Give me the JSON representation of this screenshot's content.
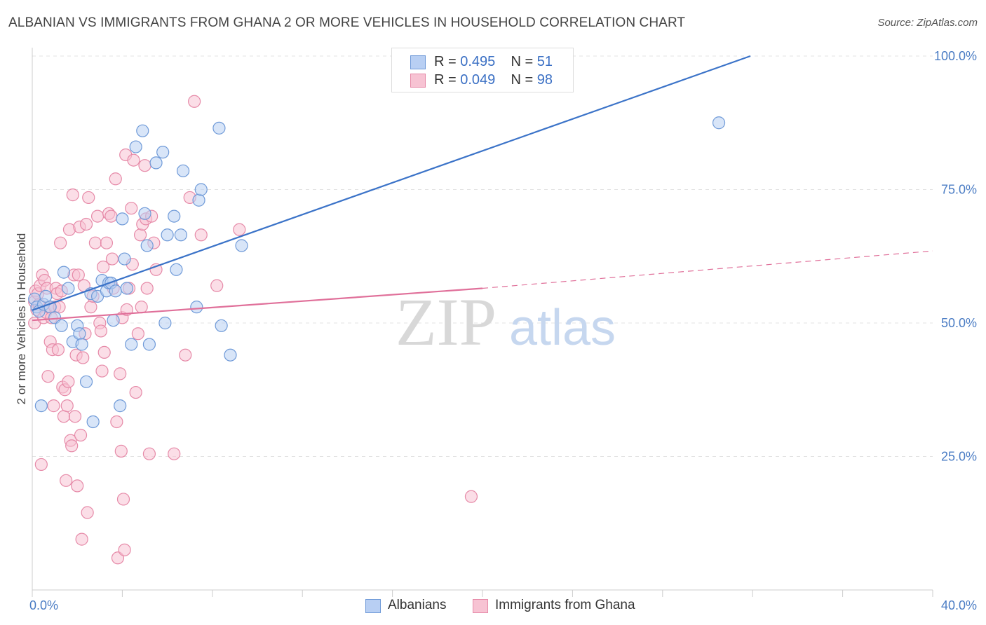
{
  "header": {
    "title": "ALBANIAN VS IMMIGRANTS FROM GHANA 2 OR MORE VEHICLES IN HOUSEHOLD CORRELATION CHART",
    "source": "Source: ZipAtlas.com"
  },
  "legend": {
    "rows": [
      {
        "r_label": "R =",
        "r_value": "0.495",
        "n_label": "N =",
        "n_value": "51"
      },
      {
        "r_label": "R =",
        "r_value": "0.049",
        "n_label": "N =",
        "n_value": "98"
      }
    ]
  },
  "watermark": {
    "zip": "ZIP",
    "atlas": "atlas"
  },
  "colors": {
    "albanian_fill": "#b8cff3",
    "albanian_stroke": "#6f9ad8",
    "albanian_line": "#3b73c8",
    "ghana_fill": "#f7c3d3",
    "ghana_stroke": "#e68aa8",
    "ghana_line": "#e0709a",
    "grid": "#e3e3e3",
    "axis_text": "#4a7cc4"
  },
  "chart_data": {
    "type": "scatter",
    "title": "ALBANIAN VS IMMIGRANTS FROM GHANA 2 OR MORE VEHICLES IN HOUSEHOLD CORRELATION CHART",
    "xlabel": "",
    "ylabel": "2 or more Vehicles in Household",
    "xlim": [
      0,
      40
    ],
    "ylim": [
      0,
      100
    ],
    "x_tick_labels": [
      "0.0%",
      "40.0%"
    ],
    "y_ticks": [
      25,
      50,
      75,
      100
    ],
    "y_tick_labels": [
      "25.0%",
      "50.0%",
      "75.0%",
      "100.0%"
    ],
    "grid": true,
    "legend_position": "bottom",
    "series": [
      {
        "name": "Albanians",
        "r": 0.495,
        "n": 51,
        "trend": {
          "x": [
            0,
            31.9
          ],
          "y": [
            52.4,
            100
          ]
        },
        "points": [
          [
            0.1,
            54.5
          ],
          [
            0.2,
            53.0
          ],
          [
            0.3,
            52.2
          ],
          [
            0.4,
            34.5
          ],
          [
            0.5,
            53.5
          ],
          [
            0.6,
            55.0
          ],
          [
            0.8,
            53.0
          ],
          [
            1.0,
            51.0
          ],
          [
            1.3,
            49.5
          ],
          [
            1.4,
            59.5
          ],
          [
            1.6,
            56.5
          ],
          [
            1.8,
            46.5
          ],
          [
            2.0,
            49.5
          ],
          [
            2.1,
            48.0
          ],
          [
            2.2,
            46.0
          ],
          [
            2.4,
            39.0
          ],
          [
            2.6,
            55.5
          ],
          [
            2.7,
            31.5
          ],
          [
            2.9,
            55.0
          ],
          [
            3.1,
            58.0
          ],
          [
            3.3,
            56.0
          ],
          [
            3.4,
            57.5
          ],
          [
            3.5,
            57.5
          ],
          [
            3.6,
            50.5
          ],
          [
            3.7,
            56.0
          ],
          [
            3.9,
            34.5
          ],
          [
            4.0,
            69.5
          ],
          [
            4.1,
            62.0
          ],
          [
            4.2,
            56.5
          ],
          [
            4.4,
            46.0
          ],
          [
            4.6,
            83.0
          ],
          [
            4.9,
            86.0
          ],
          [
            5.0,
            70.5
          ],
          [
            5.1,
            64.5
          ],
          [
            5.2,
            46.0
          ],
          [
            5.5,
            80.0
          ],
          [
            5.8,
            82.0
          ],
          [
            5.9,
            50.0
          ],
          [
            6.0,
            66.5
          ],
          [
            6.3,
            70.0
          ],
          [
            6.4,
            60.0
          ],
          [
            6.6,
            66.5
          ],
          [
            6.7,
            78.5
          ],
          [
            7.3,
            53.0
          ],
          [
            7.4,
            73.0
          ],
          [
            7.5,
            75.0
          ],
          [
            8.3,
            86.5
          ],
          [
            8.4,
            49.5
          ],
          [
            8.8,
            44.0
          ],
          [
            9.3,
            64.5
          ],
          [
            30.5,
            87.5
          ]
        ]
      },
      {
        "name": "Immigrants from Ghana",
        "r": 0.049,
        "n": 98,
        "trend": {
          "x": [
            0,
            20
          ],
          "y": [
            50.5,
            56.5
          ]
        },
        "trend_dashed": {
          "x": [
            20,
            40
          ],
          "y": [
            56.5,
            63.5
          ]
        },
        "points": [
          [
            0.1,
            50.0
          ],
          [
            0.1,
            54.0
          ],
          [
            0.15,
            56.0
          ],
          [
            0.2,
            52.5
          ],
          [
            0.25,
            55.5
          ],
          [
            0.3,
            53.5
          ],
          [
            0.35,
            57.0
          ],
          [
            0.4,
            23.5
          ],
          [
            0.45,
            59.0
          ],
          [
            0.5,
            51.0
          ],
          [
            0.55,
            58.0
          ],
          [
            0.6,
            52.0
          ],
          [
            0.65,
            56.5
          ],
          [
            0.7,
            40.0
          ],
          [
            0.75,
            53.0
          ],
          [
            0.8,
            46.5
          ],
          [
            0.85,
            51.0
          ],
          [
            0.9,
            45.0
          ],
          [
            0.95,
            34.5
          ],
          [
            1.0,
            53.0
          ],
          [
            1.05,
            56.5
          ],
          [
            1.1,
            55.5
          ],
          [
            1.15,
            45.0
          ],
          [
            1.2,
            53.0
          ],
          [
            1.25,
            65.0
          ],
          [
            1.3,
            56.0
          ],
          [
            1.35,
            38.0
          ],
          [
            1.4,
            32.5
          ],
          [
            1.45,
            37.5
          ],
          [
            1.5,
            20.5
          ],
          [
            1.55,
            34.5
          ],
          [
            1.6,
            39.0
          ],
          [
            1.65,
            67.5
          ],
          [
            1.7,
            28.0
          ],
          [
            1.75,
            27.0
          ],
          [
            1.8,
            74.0
          ],
          [
            1.85,
            59.0
          ],
          [
            1.9,
            32.5
          ],
          [
            1.95,
            44.0
          ],
          [
            2.0,
            19.5
          ],
          [
            2.05,
            59.0
          ],
          [
            2.1,
            68.0
          ],
          [
            2.15,
            29.0
          ],
          [
            2.2,
            9.5
          ],
          [
            2.25,
            43.5
          ],
          [
            2.3,
            57.0
          ],
          [
            2.35,
            48.0
          ],
          [
            2.4,
            68.5
          ],
          [
            2.45,
            14.5
          ],
          [
            2.5,
            73.5
          ],
          [
            2.6,
            53.0
          ],
          [
            2.7,
            55.0
          ],
          [
            2.8,
            65.0
          ],
          [
            2.9,
            70.0
          ],
          [
            3.0,
            50.0
          ],
          [
            3.05,
            48.5
          ],
          [
            3.1,
            41.0
          ],
          [
            3.15,
            60.5
          ],
          [
            3.2,
            44.5
          ],
          [
            3.3,
            65.0
          ],
          [
            3.4,
            70.5
          ],
          [
            3.5,
            70.0
          ],
          [
            3.55,
            62.0
          ],
          [
            3.6,
            56.5
          ],
          [
            3.7,
            77.0
          ],
          [
            3.75,
            31.5
          ],
          [
            3.8,
            6.0
          ],
          [
            3.9,
            40.5
          ],
          [
            3.95,
            26.0
          ],
          [
            4.0,
            51.0
          ],
          [
            4.05,
            17.0
          ],
          [
            4.1,
            7.5
          ],
          [
            4.15,
            81.5
          ],
          [
            4.2,
            52.5
          ],
          [
            4.3,
            56.5
          ],
          [
            4.4,
            71.5
          ],
          [
            4.45,
            61.0
          ],
          [
            4.5,
            80.5
          ],
          [
            4.6,
            37.0
          ],
          [
            4.7,
            48.0
          ],
          [
            4.8,
            66.5
          ],
          [
            4.85,
            53.0
          ],
          [
            4.9,
            68.5
          ],
          [
            5.0,
            79.5
          ],
          [
            5.05,
            69.5
          ],
          [
            5.1,
            56.5
          ],
          [
            5.2,
            25.5
          ],
          [
            5.3,
            70.0
          ],
          [
            5.4,
            65.0
          ],
          [
            5.5,
            60.0
          ],
          [
            6.3,
            25.5
          ],
          [
            6.8,
            44.0
          ],
          [
            7.0,
            73.5
          ],
          [
            7.2,
            91.5
          ],
          [
            7.5,
            66.5
          ],
          [
            8.2,
            57.0
          ],
          [
            9.2,
            67.5
          ],
          [
            19.5,
            17.5
          ]
        ]
      }
    ]
  },
  "bottom_legend": {
    "items": [
      {
        "label": "Albanians"
      },
      {
        "label": "Immigrants from Ghana"
      }
    ]
  }
}
